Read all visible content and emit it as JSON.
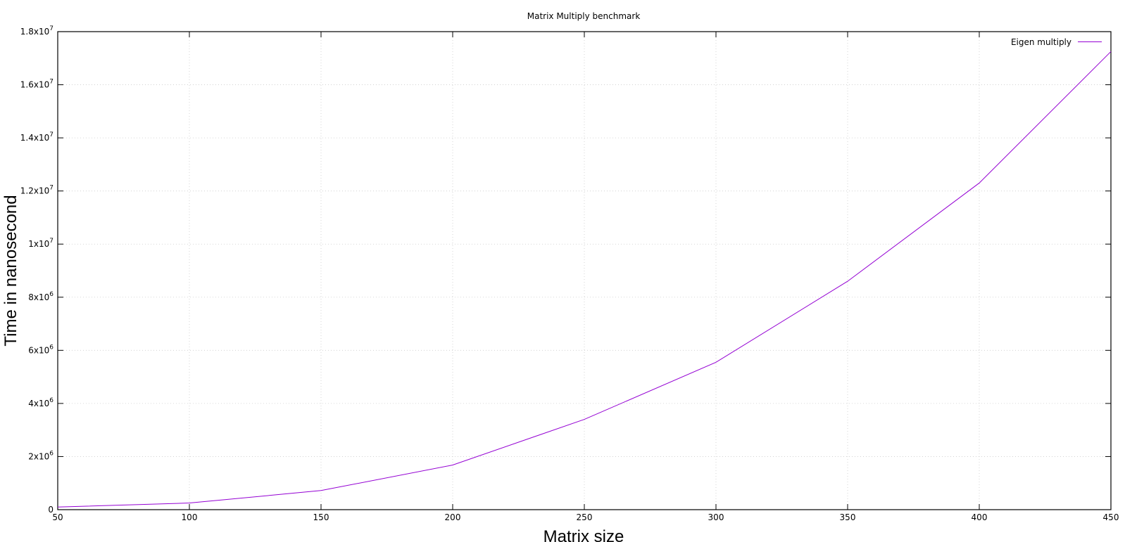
{
  "chart_data": {
    "type": "line",
    "title": "Matrix Multiply benchmark",
    "xlabel": "Matrix size",
    "ylabel": "Time in nanosecond",
    "xlim": [
      50,
      450
    ],
    "ylim": [
      0,
      18000000
    ],
    "grid": true,
    "legend_position": "top-right",
    "x_ticks": [
      "50",
      "100",
      "150",
      "200",
      "250",
      "300",
      "350",
      "400",
      "450"
    ],
    "y_ticks": [
      {
        "value": 0,
        "mantissa": "0",
        "exp": ""
      },
      {
        "value": 2000000,
        "mantissa": "2x10",
        "exp": "6"
      },
      {
        "value": 4000000,
        "mantissa": "4x10",
        "exp": "6"
      },
      {
        "value": 6000000,
        "mantissa": "6x10",
        "exp": "6"
      },
      {
        "value": 8000000,
        "mantissa": "8x10",
        "exp": "6"
      },
      {
        "value": 10000000,
        "mantissa": "1x10",
        "exp": "7"
      },
      {
        "value": 12000000,
        "mantissa": "1.2x10",
        "exp": "7"
      },
      {
        "value": 14000000,
        "mantissa": "1.4x10",
        "exp": "7"
      },
      {
        "value": 16000000,
        "mantissa": "1.6x10",
        "exp": "7"
      },
      {
        "value": 18000000,
        "mantissa": "1.8x10",
        "exp": "7"
      }
    ],
    "series": [
      {
        "name": "Eigen multiply",
        "color": "#9400d3",
        "x": [
          50,
          100,
          150,
          200,
          250,
          300,
          350,
          400,
          450
        ],
        "y": [
          100000,
          250000,
          720000,
          1680000,
          3400000,
          5550000,
          8600000,
          12300000,
          17250000
        ]
      }
    ]
  }
}
